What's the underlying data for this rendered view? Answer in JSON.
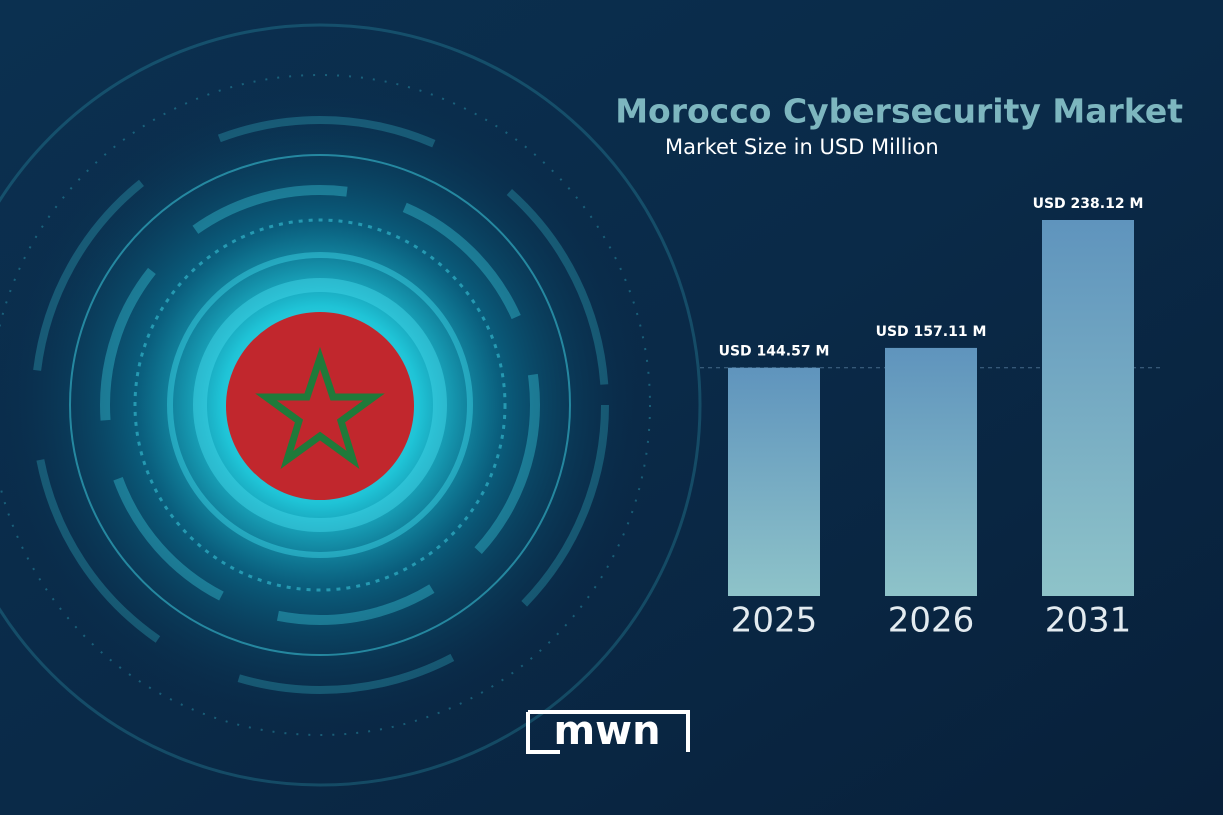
{
  "chart_data": {
    "type": "bar",
    "title": "Morocco Cybersecurity Market",
    "subtitle": "Market Size in USD Million",
    "categories": [
      "2025",
      "2026",
      "2031"
    ],
    "values": [
      144.57,
      157.11,
      238.12
    ],
    "value_labels": [
      "USD 144.57 M",
      "USD 157.11 M",
      "USD 238.12 M"
    ],
    "color": "#6f9fbf"
  },
  "logo": "mwn"
}
